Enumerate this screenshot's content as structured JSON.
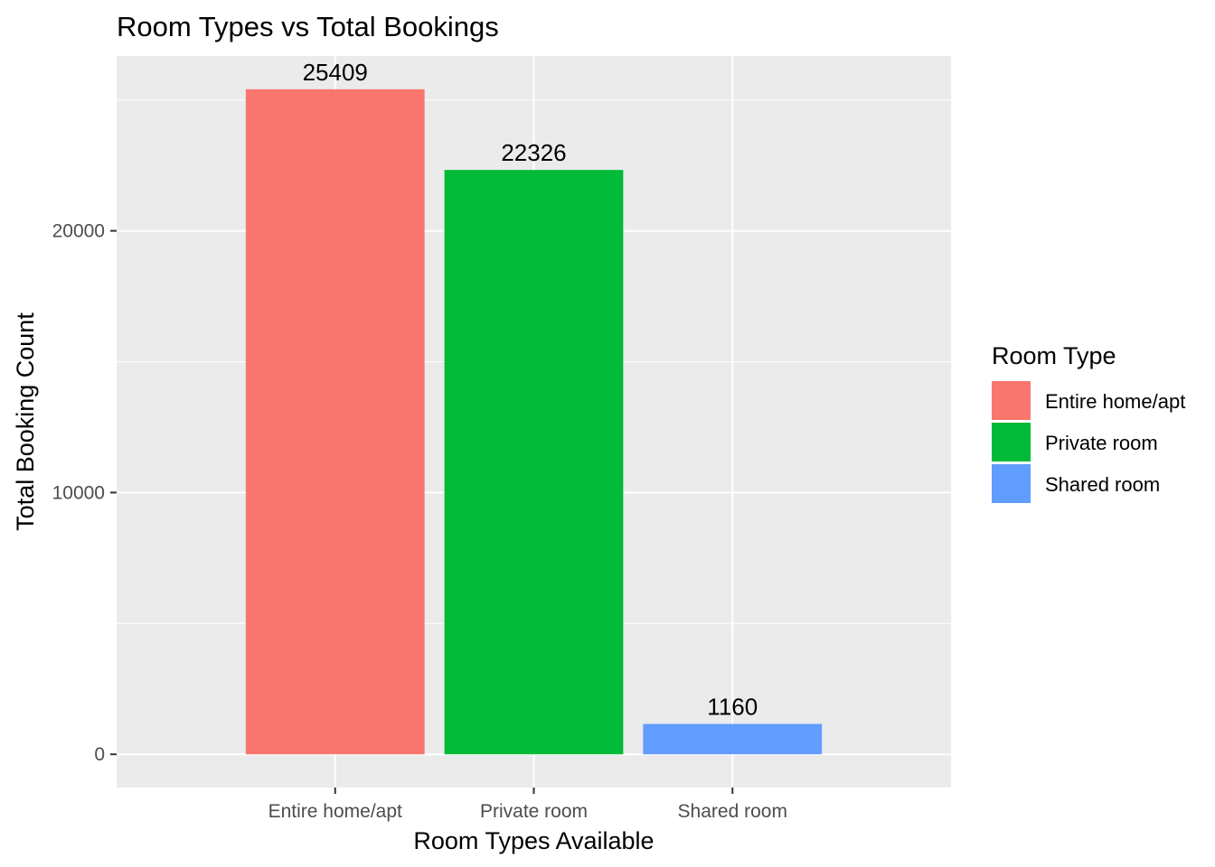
{
  "chart_data": {
    "type": "bar",
    "title": "Room Types vs Total Bookings",
    "xlabel": "Room Types Available",
    "ylabel": "Total Booking Count",
    "categories": [
      "Entire home/apt",
      "Private room",
      "Shared room"
    ],
    "values": [
      25409,
      22326,
      1160
    ],
    "value_labels": [
      "25409",
      "22326",
      "1160"
    ],
    "colors": [
      "#F8766D",
      "#00BA38",
      "#619CFF"
    ],
    "ylim": [
      -1270,
      26680
    ],
    "y_ticks": [
      0,
      10000,
      20000
    ],
    "y_tick_labels": [
      "0",
      "10000",
      "20000"
    ],
    "y_minor_ticks": [
      5000,
      15000,
      25000
    ],
    "grid": true,
    "panel_background": "#EBEBEB",
    "legend": {
      "title": "Room Type",
      "position": "right",
      "entries": [
        "Entire home/apt",
        "Private room",
        "Shared room"
      ]
    }
  }
}
